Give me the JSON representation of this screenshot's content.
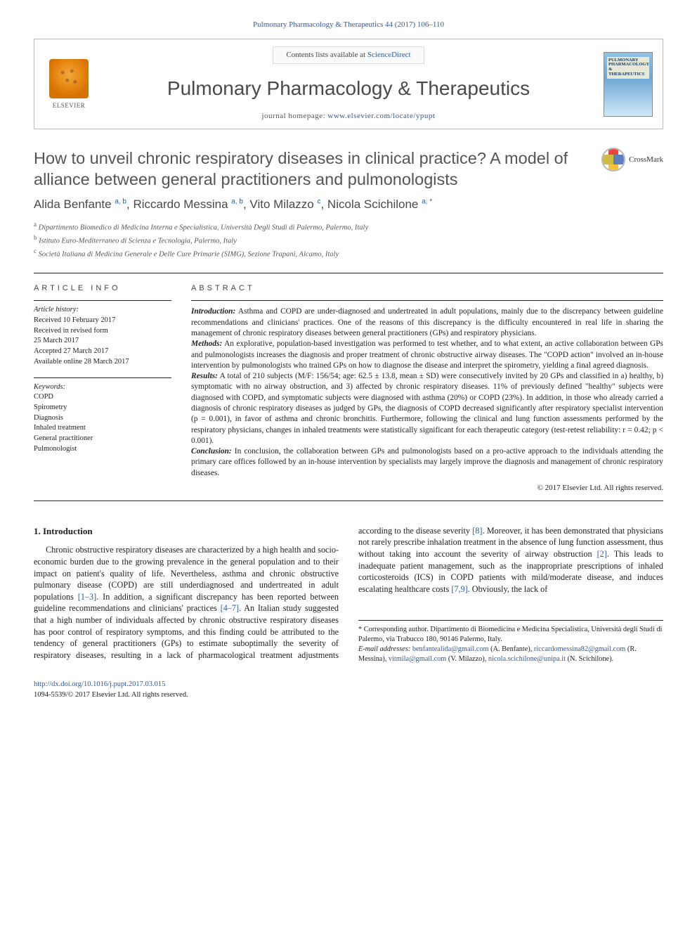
{
  "header_citation": "Pulmonary Pharmacology & Therapeutics 44 (2017) 106–110",
  "banner": {
    "contents_prefix": "Contents lists available at ",
    "contents_link": "ScienceDirect",
    "journal_title": "Pulmonary Pharmacology & Therapeutics",
    "homepage_prefix": "journal homepage: ",
    "homepage_url": "www.elsevier.com/locate/ypupt",
    "elsevier_label": "ELSEVIER",
    "cover_label": "PULMONARY PHARMACOLOGY & THERAPEUTICS"
  },
  "title": "How to unveil chronic respiratory diseases in clinical practice? A model of alliance between general practitioners and pulmonologists",
  "crossmark_label": "CrossMark",
  "authors_html": "Alida Benfante <sup>a, b</sup>, Riccardo Messina <sup>a, b</sup>, Vito Milazzo <sup>c</sup>, Nicola Scichilone <sup>a, *</sup>",
  "affiliations": [
    {
      "key": "a",
      "text": "Dipartimento Biomedico di Medicina Interna e Specialistica, Università Degli Studi di Palermo, Palermo, Italy"
    },
    {
      "key": "b",
      "text": "Istituto Euro-Mediterraneo di Scienza e Tecnologia, Palermo, Italy"
    },
    {
      "key": "c",
      "text": "Società Italiana di Medicina Generale e Delle Cure Primarie (SIMG), Sezione Trapani, Alcamo, Italy"
    }
  ],
  "article_info": {
    "heading": "ARTICLE INFO",
    "history_label": "Article history:",
    "history": [
      "Received 10 February 2017",
      "Received in revised form",
      "25 March 2017",
      "Accepted 27 March 2017",
      "Available online 28 March 2017"
    ],
    "keywords_label": "Keywords:",
    "keywords": [
      "COPD",
      "Spirometry",
      "Diagnosis",
      "Inhaled treatment",
      "General practitioner",
      "Pulmonologist"
    ]
  },
  "abstract": {
    "heading": "ABSTRACT",
    "intro_label": "Introduction:",
    "intro": "Asthma and COPD are under-diagnosed and undertreated in adult populations, mainly due to the discrepancy between guideline recommendations and clinicians' practices. One of the reasons of this discrepancy is the difficulty encountered in real life in sharing the management of chronic respiratory diseases between general practitioners (GPs) and respiratory physicians.",
    "methods_label": "Methods:",
    "methods": "An explorative, population-based investigation was performed to test whether, and to what extent, an active collaboration between GPs and pulmonologists increases the diagnosis and proper treatment of chronic obstructive airway diseases. The \"COPD action\" involved an in-house intervention by pulmonologists who trained GPs on how to diagnose the disease and interpret the spirometry, yielding a final agreed diagnosis.",
    "results_label": "Results:",
    "results": "A total of 210 subjects (M/F: 156/54; age: 62.5 ± 13.8, mean ± SD) were consecutively invited by 20 GPs and classified in a) healthy, b) symptomatic with no airway obstruction, and 3) affected by chronic respiratory diseases. 11% of previously defined \"healthy\" subjects were diagnosed with COPD, and symptomatic subjects were diagnosed with asthma (20%) or COPD (23%). In addition, in those who already carried a diagnosis of chronic respiratory diseases as judged by GPs, the diagnosis of COPD decreased significantly after respiratory specialist intervention (p = 0.001), in favor of asthma and chronic bronchitis. Furthermore, following the clinical and lung function assessments performed by the respiratory physicians, changes in inhaled treatments were statistically significant for each therapeutic category (test-retest reliability: r = 0.42; p < 0.001).",
    "conclusion_label": "Conclusion:",
    "conclusion": "In conclusion, the collaboration between GPs and pulmonologists based on a pro-active approach to the individuals attending the primary care offices followed by an in-house intervention by specialists may largely improve the diagnosis and management of chronic respiratory diseases.",
    "copyright": "© 2017 Elsevier Ltd. All rights reserved."
  },
  "body": {
    "section_title": "1. Introduction",
    "para1": "Chronic obstructive respiratory diseases are characterized by a high health and socio-economic burden due to the growing prevalence in the general population and to their impact on patient's quality of life. Nevertheless, asthma and chronic obstructive pulmonary disease (COPD) are still underdiagnosed and undertreated in adult populations ",
    "cite1": "[1–3]",
    "para1b": ". In addition, a significant discrepancy",
    "para2a": "has been reported between guideline recommendations and clinicians' practices ",
    "cite2": "[4–7]",
    "para2b": ". An Italian study suggested that a high number of individuals affected by chronic obstructive respiratory diseases has poor control of respiratory symptoms, and this finding could be attributed to the tendency of general practitioners (GPs) to estimate suboptimally the severity of respiratory diseases, resulting in a lack of pharmacological treatment adjustments according to the disease severity ",
    "cite3": "[8]",
    "para2c": ". Moreover, it has been demonstrated that physicians not rarely prescribe inhalation treatment in the absence of lung function assessment, thus without taking into account the severity of airway obstruction ",
    "cite4": "[2]",
    "para2d": ". This leads to inadequate patient management, such as the inappropriate prescriptions of inhaled corticosteroids (ICS) in COPD patients with mild/moderate disease, and induces escalating healthcare costs ",
    "cite5": "[7,9]",
    "para2e": ". Obviously, the lack of"
  },
  "footnotes": {
    "corr": "* Corresponding author. Dipartimento di Biomedicina e Medicina Specialistica, Università degli Studi di Palermo, via Trabucco 180, 90146 Palermo, Italy.",
    "email_label": "E-mail addresses:",
    "emails": [
      {
        "addr": "benfantealida@gmail.com",
        "who": " (A. Benfante), "
      },
      {
        "addr": "riccardomessina82@gmail.com",
        "who": " (R. Messina), "
      },
      {
        "addr": "vitmila@gmail.com",
        "who": " (V. Milazzo), "
      },
      {
        "addr": "nicola.scichilone@unipa.it",
        "who": " (N. Scichilone)."
      }
    ]
  },
  "footer": {
    "doi": "http://dx.doi.org/10.1016/j.pupt.2017.03.015",
    "issn_line": "1094-5539/© 2017 Elsevier Ltd. All rights reserved."
  },
  "colors": {
    "link": "#2e5a9c",
    "rule": "#222222",
    "muted": "#555555"
  }
}
